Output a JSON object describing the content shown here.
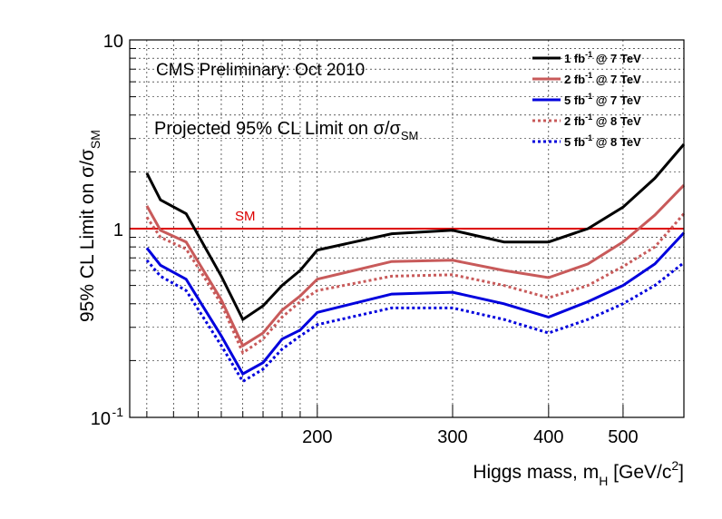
{
  "chart_data": {
    "type": "line",
    "title": "CMS Preliminary: Oct 2010",
    "subtitle_main": "Projected 95% CL Limit on σ/σ",
    "subtitle_sub": "SM",
    "xlabel_main": "Higgs mass, m",
    "xlabel_sub": "H",
    "xlabel_tail": " [GeV/c",
    "xlabel_sup": "2",
    "xlabel_end": "]",
    "ylabel_main": "95% CL Limit on σ/σ",
    "ylabel_sub": "SM",
    "x_scale": "log",
    "y_scale": "log",
    "xlim": [
      114,
      600
    ],
    "ylim": [
      0.1,
      10
    ],
    "grid": true,
    "legend_position": "top-right",
    "x_ticks": [
      {
        "value": 200,
        "label": "200"
      },
      {
        "value": 300,
        "label": "300"
      },
      {
        "value": 400,
        "label": "400"
      },
      {
        "value": 500,
        "label": "500"
      }
    ],
    "y_ticks": [
      {
        "value": 0.1,
        "base": "10",
        "exp": "-1"
      },
      {
        "value": 1,
        "base": "1",
        "exp": ""
      },
      {
        "value": 10,
        "base": "10",
        "exp": ""
      }
    ],
    "reference_line": {
      "value": 1,
      "label": "SM",
      "color": "#dd0000"
    },
    "series": [
      {
        "name": "1 fb⁻¹ @ 7 TeV",
        "lumi": "1 fb",
        "sup": "-1",
        "energy": " @ 7 TeV",
        "color": "#000000",
        "dash": "solid",
        "x": [
          120,
          125,
          135,
          150,
          160,
          170,
          180,
          190,
          200,
          250,
          300,
          350,
          400,
          450,
          500,
          550,
          600
        ],
        "y": [
          1.97,
          1.42,
          1.2,
          0.56,
          0.33,
          0.39,
          0.5,
          0.6,
          0.77,
          0.94,
          0.98,
          0.85,
          0.85,
          1.0,
          1.3,
          1.85,
          2.8
        ]
      },
      {
        "name": "2 fb⁻¹ @ 7 TeV",
        "lumi": "2 fb",
        "sup": "-1",
        "energy": " @ 7 TeV",
        "color": "#c85a5a",
        "dash": "solid",
        "x": [
          120,
          125,
          135,
          150,
          160,
          170,
          180,
          190,
          200,
          250,
          300,
          350,
          400,
          450,
          500,
          550,
          600
        ],
        "y": [
          1.32,
          0.98,
          0.85,
          0.42,
          0.24,
          0.28,
          0.37,
          0.44,
          0.54,
          0.67,
          0.68,
          0.6,
          0.55,
          0.65,
          0.85,
          1.18,
          1.7
        ]
      },
      {
        "name": "5 fb⁻¹ @ 7 TeV",
        "lumi": "5 fb",
        "sup": "-1",
        "energy": " @ 7 TeV",
        "color": "#0000dd",
        "dash": "solid",
        "x": [
          120,
          125,
          135,
          150,
          160,
          170,
          180,
          190,
          200,
          250,
          300,
          350,
          400,
          450,
          500,
          550,
          600
        ],
        "y": [
          0.79,
          0.64,
          0.54,
          0.27,
          0.17,
          0.195,
          0.26,
          0.29,
          0.36,
          0.45,
          0.46,
          0.4,
          0.34,
          0.41,
          0.5,
          0.65,
          0.95
        ]
      },
      {
        "name": "2 fb⁻¹ @ 8 TeV",
        "lumi": "2 fb",
        "sup": "-1",
        "energy": " @ 8 TeV",
        "color": "#c85a5a",
        "dash": "dotted",
        "x": [
          120,
          125,
          135,
          150,
          160,
          170,
          180,
          190,
          200,
          250,
          300,
          350,
          400,
          450,
          500,
          550,
          600
        ],
        "y": [
          1.15,
          0.9,
          0.78,
          0.4,
          0.22,
          0.26,
          0.34,
          0.41,
          0.47,
          0.56,
          0.57,
          0.5,
          0.43,
          0.5,
          0.63,
          0.8,
          1.2
        ]
      },
      {
        "name": "5 fb⁻¹ @ 8 TeV",
        "lumi": "5 fb",
        "sup": "-1",
        "energy": " @ 8 TeV",
        "color": "#0000dd",
        "dash": "dotted",
        "x": [
          120,
          125,
          135,
          150,
          160,
          170,
          180,
          190,
          200,
          250,
          300,
          350,
          400,
          450,
          500,
          550,
          600
        ],
        "y": [
          0.68,
          0.56,
          0.47,
          0.24,
          0.155,
          0.18,
          0.23,
          0.27,
          0.31,
          0.38,
          0.38,
          0.33,
          0.28,
          0.33,
          0.4,
          0.5,
          0.66
        ]
      }
    ]
  }
}
